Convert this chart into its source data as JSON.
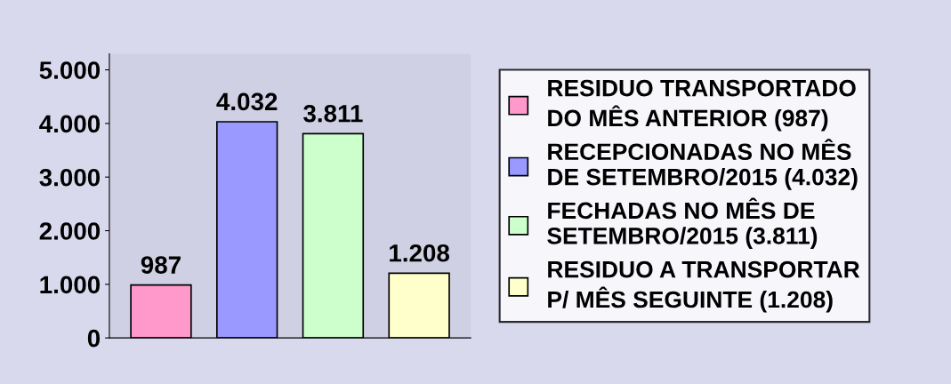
{
  "chart_data": {
    "type": "bar",
    "categories": [
      null,
      null,
      null,
      null
    ],
    "series": [
      {
        "name": "RESIDUO TRANSPORTADO\nDO MÊS ANTERIOR (987)",
        "color": "#ff99cc",
        "values": [
          987,
          null,
          null,
          null
        ],
        "value_labels": [
          "987",
          null,
          null,
          null
        ]
      },
      {
        "name": "RECEPCIONADAS NO MÊS\nDE SETEMBRO/2015 (4.032)",
        "color": "#9999ff",
        "values": [
          null,
          4032,
          null,
          null
        ],
        "value_labels": [
          null,
          "4.032",
          null,
          null
        ]
      },
      {
        "name": "FECHADAS NO MÊS DE\nSETEMBRO/2015 (3.811)",
        "color": "#ccffcc",
        "values": [
          null,
          null,
          3811,
          null
        ],
        "value_labels": [
          null,
          null,
          "3.811",
          null
        ]
      },
      {
        "name": "RESIDUO A TRANSPORTAR\nP/ MÊS SEGUINTE (1.208)",
        "color": "#ffffcc",
        "values": [
          null,
          null,
          null,
          1208
        ],
        "value_labels": [
          null,
          null,
          null,
          "1.208"
        ]
      }
    ],
    "ylim": [
      0,
      5300
    ],
    "yticks": [
      {
        "value": 0,
        "label": "0"
      },
      {
        "value": 1000,
        "label": "1.000"
      },
      {
        "value": 2000,
        "label": "2.000"
      },
      {
        "value": 3000,
        "label": "3.000"
      },
      {
        "value": 4000,
        "label": "4.000"
      },
      {
        "value": 5000,
        "label": "5.000"
      }
    ],
    "grid": false,
    "legend": "right"
  }
}
